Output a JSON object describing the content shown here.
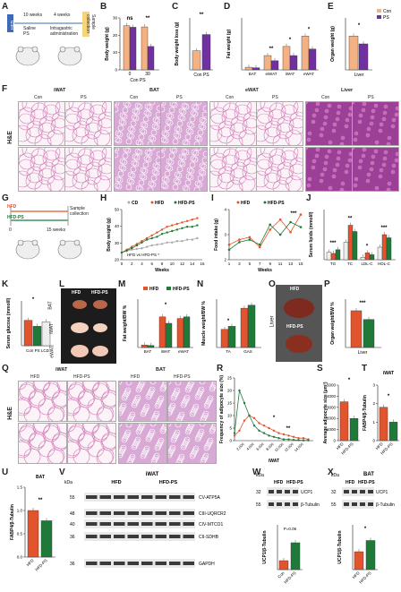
{
  "panel_letters": [
    "A",
    "B",
    "C",
    "D",
    "E",
    "F",
    "G",
    "H",
    "I",
    "J",
    "K",
    "L",
    "M",
    "N",
    "O",
    "P",
    "Q",
    "R",
    "S",
    "T",
    "U",
    "V",
    "W",
    "X"
  ],
  "panelA": {
    "model": "HFD",
    "step1": "10 weeks",
    "step1b": "Saline\nPS",
    "step2": "4 weeks",
    "step2b": "Intragastric\nadministration",
    "end": "Sample\ncollection"
  },
  "legend_top": {
    "con": "Con",
    "ps": "PS",
    "colors": {
      "con": "#f4b183",
      "ps": "#7030a0"
    }
  },
  "panelB": {
    "ylabel": "Body weight (g)",
    "xticks": [
      "0",
      "30"
    ],
    "ns": "ns",
    "sig": "**",
    "ylim": [
      0,
      30
    ],
    "yticks": [
      "0",
      "10",
      "20",
      "30"
    ],
    "con": [
      25.5,
      24.8
    ],
    "ps": [
      24.6,
      13.5
    ],
    "xlabel": "Con PS"
  },
  "panelC": {
    "ylabel": "Body weight loss (g)",
    "sig": "**",
    "xlabel": "Con PS",
    "values": [
      5.5,
      10.2
    ],
    "ylim": [
      0,
      15
    ]
  },
  "panelD": {
    "ylabel": "Fat weight (g)",
    "categories": [
      "BAT",
      "eiWAT",
      "iWAT",
      "eWAT"
    ],
    "con": [
      0.1,
      0.55,
      0.9,
      1.3
    ],
    "ps": [
      0.08,
      0.35,
      0.55,
      0.8
    ],
    "sigs": [
      "",
      "**",
      "*",
      "*"
    ],
    "ylim": [
      0,
      2
    ]
  },
  "panelE": {
    "ylabel": "Organ weight (g)",
    "xlabel": "Liver",
    "con": 1.3,
    "ps": 1.0,
    "sig": "*",
    "ylim": [
      0,
      2
    ]
  },
  "panelF": {
    "he": "H&E",
    "headers": [
      "iWAT",
      "BAT",
      "eWAT",
      "Liver"
    ],
    "sub": [
      "Con",
      "PS"
    ]
  },
  "panelG": {
    "hfd": "HFD",
    "hfdps": "HFD-PS",
    "end": "Sample\ncollection",
    "duration": "15 weeks",
    "start": "0"
  },
  "panelH": {
    "ylabel": "Body weight (g)",
    "xlabel": "Weeks",
    "legend": [
      "CD",
      "HFD",
      "HFD-PS"
    ],
    "note": "HFD vs HFD-PS *",
    "x": [
      0,
      1,
      2,
      3,
      4,
      5,
      6,
      7,
      8,
      9,
      10,
      11,
      12,
      13,
      14,
      15
    ],
    "cd": [
      20,
      21,
      22,
      22.5,
      23,
      24,
      25,
      25.5,
      26,
      27,
      27,
      28,
      28,
      29,
      29,
      30
    ],
    "hfd": [
      20,
      22,
      24,
      26,
      28,
      30,
      32,
      34,
      36,
      38,
      39,
      40,
      41,
      42,
      43,
      44
    ],
    "hfdps": [
      20,
      21.5,
      23,
      25,
      27,
      29,
      30,
      31,
      33,
      34,
      35,
      36,
      37,
      38,
      38,
      39
    ],
    "ylim": [
      15,
      50
    ],
    "yticks": [
      "20",
      "30",
      "40",
      "50"
    ],
    "xticks": [
      "0",
      "2",
      "4",
      "6",
      "8",
      "10",
      "12",
      "14",
      "16"
    ]
  },
  "panelI": {
    "ylabel": "Food intake (g)",
    "xlabel": "Weeks",
    "legend": [
      "HFD",
      "HFD-PS"
    ],
    "x": [
      1,
      3,
      5,
      7,
      9,
      11,
      13,
      15
    ],
    "hfd": [
      2.6,
      2.8,
      2.9,
      2.5,
      3.2,
      3.6,
      3.1,
      3.8
    ],
    "hfdps": [
      2.4,
      2.7,
      2.8,
      2.6,
      3.4,
      3.0,
      3.5,
      3.3
    ],
    "ylim": [
      2,
      4
    ],
    "yticks": [
      "2",
      "3",
      "4"
    ],
    "xticks": [
      "1",
      "3",
      "5",
      "7",
      "9",
      "11",
      "13",
      "15"
    ],
    "sig": "***"
  },
  "panelJ": {
    "ylabel": "Serum lipids (mmol/l)",
    "categories": [
      "TG",
      "TC",
      "LDL-C",
      "HDL-C"
    ],
    "cd": [
      1.2,
      2.8,
      0.4,
      2.0
    ],
    "hfd": [
      1.0,
      5.5,
      1.1,
      4.0
    ],
    "hfdps": [
      1.6,
      4.5,
      0.8,
      3.5
    ],
    "sigs": [
      "***",
      "**",
      "*",
      "***"
    ],
    "ylim": [
      0,
      8
    ]
  },
  "panelK": {
    "ylabel": "Serum glucose (mmol/l)",
    "xlabel": "Con PS LCD",
    "values": [
      8.5,
      6.5,
      8.0
    ],
    "sig": "*",
    "ylim": [
      0,
      15
    ]
  },
  "panelL": {
    "headers": [
      "HFD",
      "HFD-PS"
    ],
    "rows": [
      "BAT",
      "iWAT",
      "eWAT"
    ]
  },
  "panelM": {
    "ylabel": "Fat weight/BW %",
    "categories": [
      "BAT",
      "iWAT",
      "eWAT"
    ],
    "legend": [
      "HFD",
      "HFD-PS"
    ],
    "hfd": [
      0.3,
      3.8,
      3.6
    ],
    "hfdps": [
      0.25,
      3.0,
      3.8
    ],
    "sig": "*",
    "ylim": [
      0,
      6
    ]
  },
  "panelN": {
    "ylabel": "Muscle weight/BW %",
    "categories": [
      "TA",
      "GAS"
    ],
    "hfd": [
      0.3,
      0.65
    ],
    "hfdps": [
      0.35,
      0.7
    ],
    "sig": "*",
    "ylim": [
      0,
      0.8
    ]
  },
  "panelO": {
    "label": "Liver",
    "top": "HFD",
    "bottom": "HFD-PS"
  },
  "panelP": {
    "ylabel": "Organ weight/BW %",
    "xlabel": "Liver",
    "hfd": 3.8,
    "hfdps": 2.9,
    "sig": "***",
    "ylim": [
      0,
      5
    ]
  },
  "panelQ": {
    "he": "H&E",
    "headers": [
      "iWAT",
      "BAT"
    ],
    "sub": [
      "HFD",
      "HFD-PS"
    ]
  },
  "panelR": {
    "ylabel": "Frequency of adipocyte size (%)",
    "xlabel": "iWAT",
    "x": [
      0,
      1000,
      2000,
      3000,
      4000,
      5000,
      6000,
      7000,
      8000,
      9000,
      10000,
      11000,
      12000,
      13000,
      14000,
      15000
    ],
    "hfd": [
      2,
      4,
      8,
      10,
      9,
      7,
      6,
      5,
      4,
      3,
      2.5,
      2,
      1.5,
      1,
      1,
      0.5
    ],
    "hfdps": [
      3,
      20,
      15,
      10,
      6,
      4,
      3,
      2,
      1.5,
      1,
      0.5,
      0.5,
      0.3,
      0.2,
      0.1,
      0.1
    ],
    "ylim": [
      0,
      25
    ],
    "yticks": [
      "0",
      "5",
      "10",
      "15",
      "20",
      "25"
    ],
    "xticks": [
      "2,000",
      "4,000",
      "6,000",
      "8,000",
      "10,000",
      "12,000",
      "14,000"
    ],
    "sigs": [
      "*",
      "**"
    ]
  },
  "panelS": {
    "ylabel": "Average adipocyte size (μm²)",
    "xlabels": [
      "HFD",
      "HFD-PS"
    ],
    "values": [
      3500,
      2000
    ],
    "sig": "*",
    "ylim": [
      0,
      5000
    ],
    "yticks": [
      "0",
      "1000",
      "2000",
      "3000",
      "4000",
      "5000"
    ]
  },
  "panelT": {
    "ylabel": "FABP4/β-Tubulin",
    "title": "iWAT",
    "xlabels": [
      "HFD",
      "HFD-PS"
    ],
    "values": [
      1.8,
      1.0
    ],
    "sig": "*",
    "ylim": [
      0,
      3
    ],
    "yticks": [
      "0",
      "1",
      "2",
      "3"
    ]
  },
  "panelU": {
    "ylabel": "FABP4/β-Tubulin",
    "title": "BAT",
    "xlabels": [
      "HFD",
      "HFD-PS"
    ],
    "values": [
      1.0,
      0.78
    ],
    "sig": "**",
    "ylim": [
      0,
      1.5
    ],
    "yticks": [
      "0.0",
      "0.5",
      "1.0",
      "1.5"
    ]
  },
  "panelV": {
    "title": "iWAT",
    "kda": "kDa",
    "groups": [
      "HFD",
      "HFD-PS"
    ],
    "markers": [
      "55",
      "48",
      "40",
      "36",
      "36"
    ],
    "bands": [
      "CV-ATP5A",
      "CIII-UQRCR2",
      "CIV-MTCO1",
      "CII-SDHB",
      "GAPDH"
    ]
  },
  "panelW": {
    "kda": "kDa",
    "groups": [
      "HFD",
      "HFD-PS"
    ],
    "markers": [
      "32",
      "55"
    ],
    "bands": [
      "UCP1",
      "β-Tubulin"
    ],
    "ylabel": "UCP1/β-Tubulin",
    "xlabels": [
      "Con",
      "HFD-PS"
    ],
    "values": [
      0.4,
      1.2
    ],
    "p": "P=0.06",
    "ylim": [
      0,
      2
    ]
  },
  "panelX": {
    "title": "BAT",
    "kda": "kDa",
    "groups": [
      "HFD",
      "HFD-PS"
    ],
    "markers": [
      "32",
      "55"
    ],
    "bands": [
      "UCP1",
      "β-Tubulin"
    ],
    "ylabel": "UCP1/β-Tubulin",
    "xlabels": [
      "HFD",
      "HFD-PS"
    ],
    "values": [
      0.8,
      1.3
    ],
    "sig": "*",
    "ylim": [
      0,
      2
    ]
  },
  "colors": {
    "orange": "#f4b183",
    "purple": "#7030a0",
    "red": "#e2542e",
    "green": "#1f7a3a",
    "gray": "#aaaaaa",
    "pink": "#c76cc7"
  }
}
